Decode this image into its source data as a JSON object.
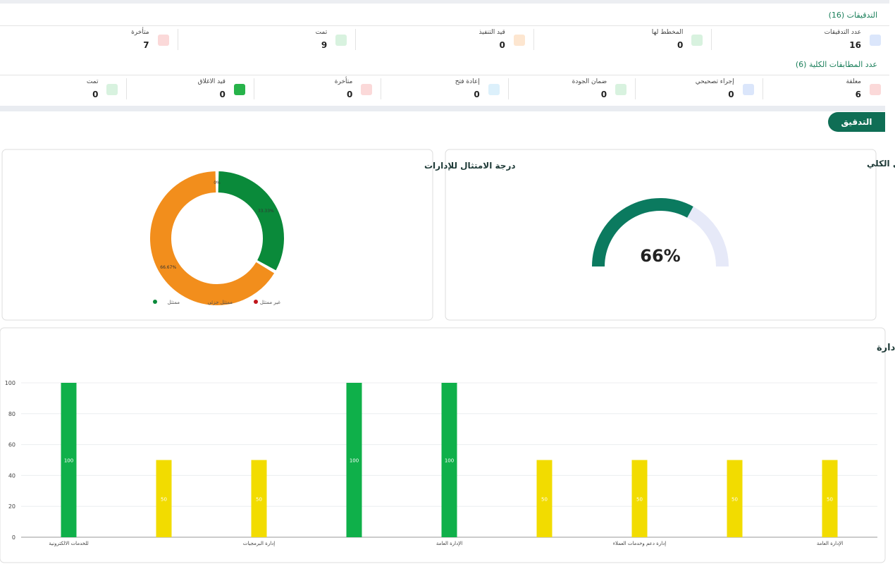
{
  "audits": {
    "title": "التدقيقات (16)",
    "items": [
      {
        "label": "عدد التدقيقات",
        "value": 16
      },
      {
        "label": "المخطط لها",
        "value": 0
      },
      {
        "label": "قيد التنفيذ",
        "value": 0
      },
      {
        "label": "تمت",
        "value": 9
      },
      {
        "label": "متأخرة",
        "value": 7
      }
    ]
  },
  "nonconformities": {
    "title": "عدد المطابقات الكلية (6)",
    "items": [
      {
        "label": "معلقة",
        "value": 6
      },
      {
        "label": "إجراء تصحيحي",
        "value": 0
      },
      {
        "label": "ضمان الجودة",
        "value": 0
      },
      {
        "label": "إعادة فتح",
        "value": 0
      },
      {
        "label": "متأخرة",
        "value": 0
      },
      {
        "label": "قيد الاغلاق",
        "value": 0
      },
      {
        "label": "تمت",
        "value": 0
      }
    ]
  },
  "tab": "التدقيق",
  "chart_data": [
    {
      "type": "gauge",
      "title": "معدل الامتثال الكلي",
      "values": [
        66
      ],
      "value_labels": [
        "66%"
      ],
      "ylim": [
        0,
        100
      ],
      "color": "#0b7a5f",
      "track_color": "#e6e9f8"
    },
    {
      "type": "pie",
      "title": "درجة الامتثال للإدارات",
      "categories": [
        "ممتثل",
        "ممتثل جزئي",
        "غير ممتثل"
      ],
      "values": [
        33.33,
        66.67,
        0
      ],
      "value_labels": [
        "33.33%",
        "66.67%",
        "0%"
      ],
      "colors": [
        "#0a8a3a",
        "#f28e1c",
        "#c0161c"
      ]
    },
    {
      "type": "bar",
      "title": "نسبة الامتثال لكل ادارة",
      "categories": [
        "للخدمات الالكترونية",
        null,
        "إدارة البرمجيات",
        null,
        "الإدارة العامة",
        null,
        "إدارة دعم وخدمات العملاء",
        null,
        "الإدارة العامة"
      ],
      "values": [
        100,
        50,
        50,
        100,
        100,
        50,
        50,
        50,
        50
      ],
      "colors": [
        "#0fb04a",
        "#f2dc00",
        "#f2dc00",
        "#0fb04a",
        "#0fb04a",
        "#f2dc00",
        "#f2dc00",
        "#f2dc00",
        "#f2dc00"
      ],
      "ylim": [
        0,
        100
      ],
      "yticks": [
        0,
        20,
        40,
        60,
        80,
        100
      ],
      "grid": true
    }
  ]
}
